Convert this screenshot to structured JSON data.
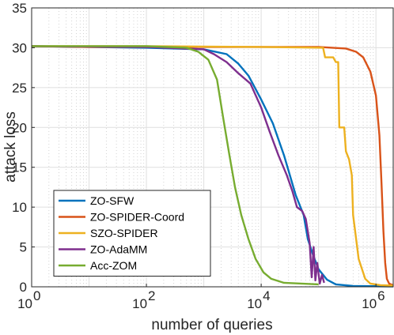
{
  "chart_data": {
    "type": "line",
    "xlabel": "number of queries",
    "ylabel": "attack loss",
    "xscale": "log",
    "xlim": [
      1,
      2000000
    ],
    "ylim": [
      0,
      35
    ],
    "grid": true,
    "legend_position": "lower-left",
    "x_tick_labels": [
      {
        "base": "10",
        "exp": "0",
        "value": 1
      },
      {
        "base": "10",
        "exp": "2",
        "value": 100
      },
      {
        "base": "10",
        "exp": "4",
        "value": 10000
      },
      {
        "base": "10",
        "exp": "6",
        "value": 1000000
      }
    ],
    "y_ticks": [
      0,
      5,
      10,
      15,
      20,
      25,
      30,
      35
    ],
    "y_tick_labels": [
      "0",
      "5",
      "10",
      "15",
      "20",
      "25",
      "30",
      "35"
    ],
    "series": [
      {
        "name": "ZO-SFW",
        "color": "#0072BD",
        "points": [
          [
            1,
            30.2
          ],
          [
            10,
            30.1
          ],
          [
            100,
            30.0
          ],
          [
            1000,
            29.8
          ],
          [
            2500,
            29.2
          ],
          [
            4000,
            28.0
          ],
          [
            6000,
            26.5
          ],
          [
            10000,
            23.5
          ],
          [
            16000,
            20.5
          ],
          [
            25000,
            16.5
          ],
          [
            40000,
            11.5
          ],
          [
            55000,
            9.0
          ],
          [
            65000,
            6.0
          ],
          [
            80000,
            4.0
          ],
          [
            100000,
            2.2
          ],
          [
            140000,
            0.9
          ],
          [
            200000,
            0.3
          ],
          [
            400000,
            0.1
          ],
          [
            2000000,
            0.05
          ]
        ]
      },
      {
        "name": "ZO-SPIDER-Coord",
        "color": "#D95319",
        "points": [
          [
            1,
            30.2
          ],
          [
            10,
            30.1
          ],
          [
            100,
            30.1
          ],
          [
            10000,
            30.1
          ],
          [
            100000,
            30.1
          ],
          [
            300000,
            29.9
          ],
          [
            450000,
            29.5
          ],
          [
            600000,
            28.8
          ],
          [
            800000,
            27.0
          ],
          [
            1000000,
            24.0
          ],
          [
            1150000,
            19.0
          ],
          [
            1250000,
            13.0
          ],
          [
            1350000,
            7.0
          ],
          [
            1450000,
            3.0
          ],
          [
            1550000,
            1.0
          ],
          [
            1700000,
            0.4
          ],
          [
            2000000,
            0.2
          ]
        ]
      },
      {
        "name": "SZO-SPIDER",
        "color": "#EDB120",
        "points": [
          [
            1,
            30.2
          ],
          [
            100,
            30.2
          ],
          [
            10000,
            30.1
          ],
          [
            120000,
            30.0
          ],
          [
            130000,
            28.8
          ],
          [
            180000,
            28.8
          ],
          [
            200000,
            28.2
          ],
          [
            220000,
            28.2
          ],
          [
            230000,
            20.0
          ],
          [
            280000,
            20.0
          ],
          [
            300000,
            17.0
          ],
          [
            340000,
            16.0
          ],
          [
            380000,
            14.0
          ],
          [
            400000,
            9.0
          ],
          [
            500000,
            3.5
          ],
          [
            650000,
            1.0
          ],
          [
            800000,
            0.4
          ],
          [
            1200000,
            0.2
          ],
          [
            2000000,
            0.15
          ]
        ]
      },
      {
        "name": "ZO-AdaMM",
        "color": "#7E2F8E",
        "points": [
          [
            1,
            30.2
          ],
          [
            100,
            30.1
          ],
          [
            1000,
            29.8
          ],
          [
            1500,
            29.2
          ],
          [
            2500,
            28.2
          ],
          [
            4000,
            26.8
          ],
          [
            6500,
            25.5
          ],
          [
            10000,
            22.5
          ],
          [
            14000,
            19.5
          ],
          [
            20000,
            16.5
          ],
          [
            28000,
            14.0
          ],
          [
            35000,
            12.0
          ],
          [
            42000,
            10.0
          ],
          [
            52000,
            9.5
          ],
          [
            60000,
            8.5
          ],
          [
            70000,
            5.5
          ],
          [
            76000,
            1.2
          ],
          [
            82000,
            5.0
          ],
          [
            88000,
            0.8
          ],
          [
            95000,
            3.0
          ],
          [
            105000,
            0.4
          ],
          [
            115000,
            1.5
          ],
          [
            125000,
            0.5
          ]
        ]
      },
      {
        "name": "Acc-ZOM",
        "color": "#77AC30",
        "points": [
          [
            1,
            30.2
          ],
          [
            100,
            30.2
          ],
          [
            500,
            30.0
          ],
          [
            800,
            29.5
          ],
          [
            1200,
            28.5
          ],
          [
            1700,
            26.0
          ],
          [
            2200,
            21.0
          ],
          [
            2800,
            16.5
          ],
          [
            3500,
            12.5
          ],
          [
            4500,
            9.0
          ],
          [
            6000,
            6.0
          ],
          [
            8000,
            3.5
          ],
          [
            11000,
            1.8
          ],
          [
            15000,
            1.0
          ],
          [
            25000,
            0.5
          ],
          [
            50000,
            0.4
          ],
          [
            100000,
            0.3
          ]
        ]
      }
    ]
  }
}
